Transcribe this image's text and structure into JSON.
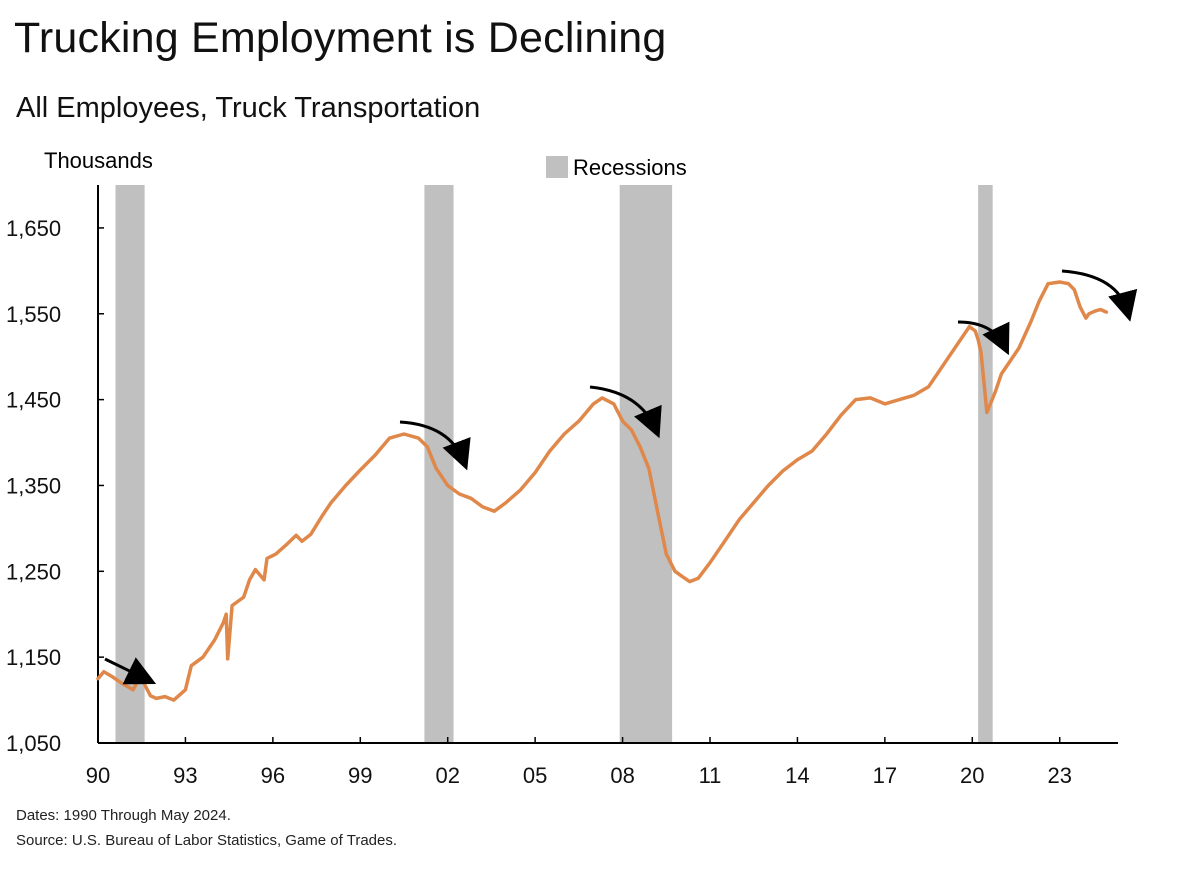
{
  "title": "Trucking Employment is Declining",
  "subtitle": "All Employees, Truck Transportation",
  "notes": {
    "dates": "Dates: 1990 Through May 2024.",
    "source": "Source: U.S. Bureau of Labor Statistics, Game of Trades."
  },
  "colors": {
    "line": "#E0874A",
    "recession": "#C0C0C0",
    "arrow": "#000000",
    "axis": "#000000"
  },
  "chart_data": {
    "type": "line",
    "title": "Trucking Employment is Declining",
    "subtitle": "All Employees, Truck Transportation",
    "ylabel": "Thousands",
    "ylim": [
      1050,
      1700
    ],
    "xlim": [
      1990.0,
      2025.0
    ],
    "yticks": [
      1050,
      1150,
      1250,
      1350,
      1450,
      1550,
      1650
    ],
    "ytick_labels": [
      "1,050",
      "1,150",
      "1,250",
      "1,350",
      "1,450",
      "1,550",
      "1,650"
    ],
    "xticks": [
      1990,
      1993,
      1996,
      1999,
      2002,
      2005,
      2008,
      2011,
      2014,
      2017,
      2020,
      2023
    ],
    "xtick_labels": [
      "90",
      "93",
      "96",
      "99",
      "02",
      "05",
      "08",
      "11",
      "14",
      "17",
      "20",
      "23"
    ],
    "legend": {
      "label": "Recessions",
      "placement": "top-center"
    },
    "recessions": [
      [
        1990.6,
        1991.6
      ],
      [
        2001.2,
        2002.2
      ],
      [
        2007.9,
        2009.7
      ],
      [
        2020.2,
        2020.7
      ]
    ],
    "series": [
      {
        "name": "",
        "x": [
          1990.0,
          1990.2,
          1990.5,
          1990.8,
          1991.2,
          1991.5,
          1991.6,
          1991.8,
          1992.0,
          1992.3,
          1992.6,
          1993.0,
          1993.2,
          1993.6,
          1994.0,
          1994.3,
          1994.4,
          1994.45,
          1994.6,
          1995.0,
          1995.2,
          1995.4,
          1995.7,
          1995.8,
          1996.1,
          1996.5,
          1996.8,
          1997.0,
          1997.3,
          1997.7,
          1998.0,
          1998.5,
          1999.0,
          1999.5,
          2000.0,
          2000.5,
          2001.0,
          2001.3,
          2001.6,
          2002.0,
          2002.4,
          2002.8,
          2003.2,
          2003.6,
          2004.0,
          2004.5,
          2005.0,
          2005.5,
          2006.0,
          2006.5,
          2007.0,
          2007.3,
          2007.7,
          2008.0,
          2008.3,
          2008.6,
          2008.9,
          2009.2,
          2009.5,
          2009.8,
          2010.0,
          2010.3,
          2010.6,
          2011.0,
          2011.5,
          2012.0,
          2012.5,
          2013.0,
          2013.5,
          2014.0,
          2014.5,
          2015.0,
          2015.5,
          2016.0,
          2016.5,
          2017.0,
          2017.5,
          2018.0,
          2018.5,
          2019.0,
          2019.5,
          2019.9,
          2020.1,
          2020.2,
          2020.3,
          2020.5,
          2020.8,
          2021.0,
          2021.3,
          2021.6,
          2022.0,
          2022.3,
          2022.6,
          2023.0,
          2023.3,
          2023.5,
          2023.7,
          2023.9,
          2024.0,
          2024.2,
          2024.4,
          2024.6
        ],
        "y": [
          1125,
          1133,
          1127,
          1120,
          1112,
          1130,
          1118,
          1105,
          1102,
          1104,
          1100,
          1112,
          1140,
          1150,
          1170,
          1190,
          1200,
          1148,
          1210,
          1220,
          1240,
          1252,
          1240,
          1265,
          1270,
          1282,
          1292,
          1285,
          1293,
          1315,
          1330,
          1350,
          1368,
          1385,
          1405,
          1410,
          1405,
          1395,
          1370,
          1350,
          1340,
          1335,
          1325,
          1320,
          1330,
          1345,
          1365,
          1390,
          1410,
          1425,
          1445,
          1452,
          1445,
          1425,
          1415,
          1395,
          1370,
          1320,
          1270,
          1250,
          1245,
          1238,
          1242,
          1260,
          1285,
          1310,
          1330,
          1350,
          1367,
          1380,
          1390,
          1410,
          1432,
          1450,
          1452,
          1445,
          1450,
          1455,
          1465,
          1490,
          1515,
          1535,
          1530,
          1520,
          1505,
          1435,
          1460,
          1480,
          1495,
          1510,
          1540,
          1565,
          1585,
          1587,
          1585,
          1578,
          1558,
          1545,
          1550,
          1553,
          1555,
          1552
        ]
      }
    ]
  }
}
